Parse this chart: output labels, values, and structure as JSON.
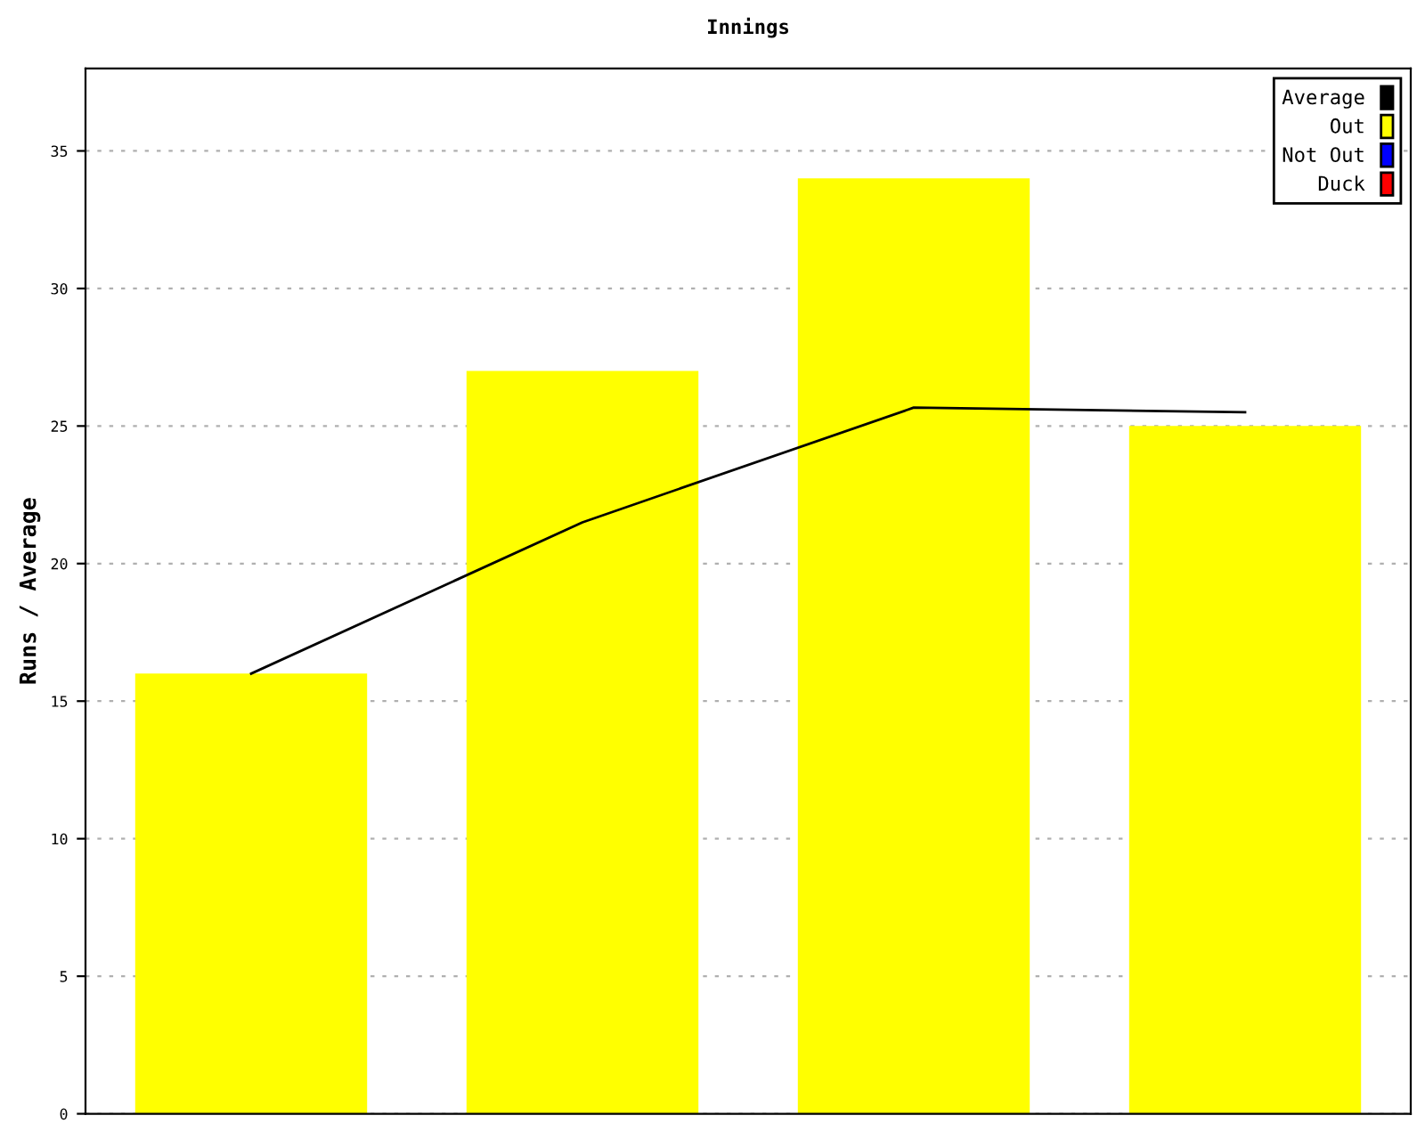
{
  "chart_data": {
    "type": "bar",
    "title": "Innings",
    "ylabel": "Runs / Average",
    "categories": [
      null,
      null,
      null,
      null
    ],
    "series": [
      {
        "name": "Average",
        "type": "line",
        "color": "#000000",
        "values": [
          16,
          21.5,
          25.67,
          25.5
        ]
      },
      {
        "name": "Out",
        "color": "#ffff00",
        "values": [
          16,
          27,
          34,
          25
        ]
      },
      {
        "name": "Not Out",
        "color": "#0000ff",
        "values": [
          null,
          null,
          null,
          null
        ]
      },
      {
        "name": "Duck",
        "color": "#ff0000",
        "values": [
          null,
          null,
          null,
          null
        ]
      }
    ],
    "ylim": [
      0,
      38
    ],
    "yticks": [
      0,
      5,
      10,
      15,
      20,
      25,
      30,
      35
    ],
    "grid": "y",
    "legend": "top right"
  }
}
